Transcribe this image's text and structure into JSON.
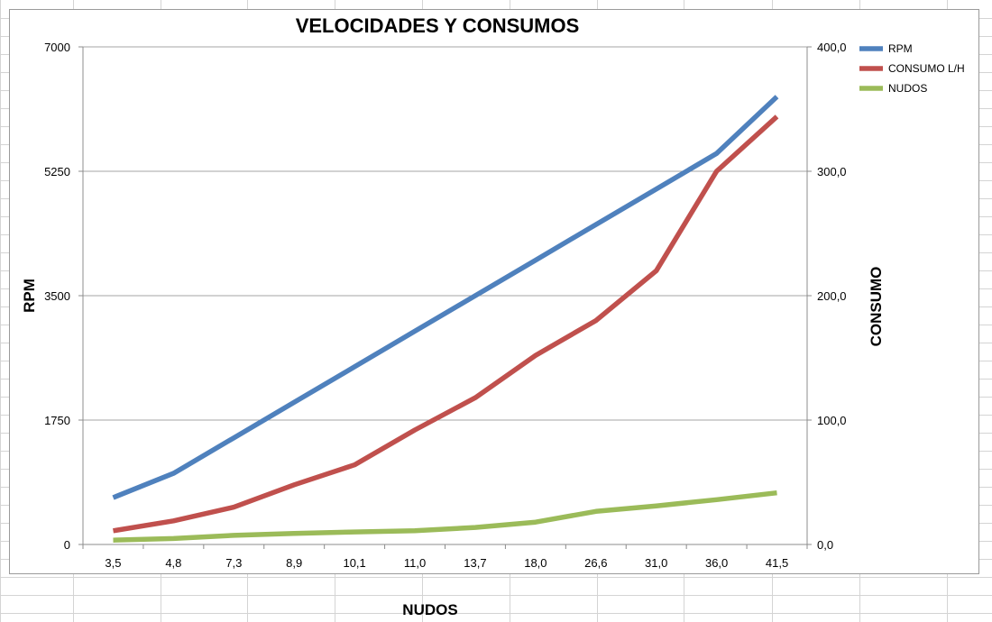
{
  "chart_data": {
    "type": "line",
    "title": "VELOCIDADES Y CONSUMOS",
    "xlabel": "NUDOS",
    "ylabel_left": "RPM",
    "ylabel_right": "CONSUMO",
    "categories": [
      "3,5",
      "4,8",
      "7,3",
      "8,9",
      "10,1",
      "11,0",
      "13,7",
      "18,0",
      "26,6",
      "31,0",
      "36,0",
      "41,5"
    ],
    "y_left": {
      "min": 0,
      "max": 7000,
      "ticks": [
        "0",
        "1750",
        "3500",
        "5250",
        "7000"
      ]
    },
    "y_right": {
      "min": 0,
      "max": 400,
      "ticks": [
        "0,0",
        "100,0",
        "200,0",
        "300,0",
        "400,0"
      ]
    },
    "grid": true,
    "legend_position": "right",
    "series": [
      {
        "name": "RPM",
        "axis": "left",
        "color": "#4F81BD",
        "values": [
          660,
          1000,
          1500,
          2000,
          2500,
          3000,
          3500,
          4000,
          4500,
          5000,
          5500,
          6300
        ]
      },
      {
        "name": "CONSUMO L/H",
        "axis": "right",
        "color": "#C0504D",
        "values": [
          11,
          19,
          30,
          48,
          64,
          92,
          118,
          152,
          180,
          220,
          300,
          344
        ]
      },
      {
        "name": "NUDOS",
        "axis": "right",
        "color": "#9BBB59",
        "values": [
          3.5,
          4.8,
          7.3,
          8.9,
          10.1,
          11.0,
          13.7,
          18.0,
          26.6,
          31.0,
          36.0,
          41.5
        ]
      }
    ]
  }
}
